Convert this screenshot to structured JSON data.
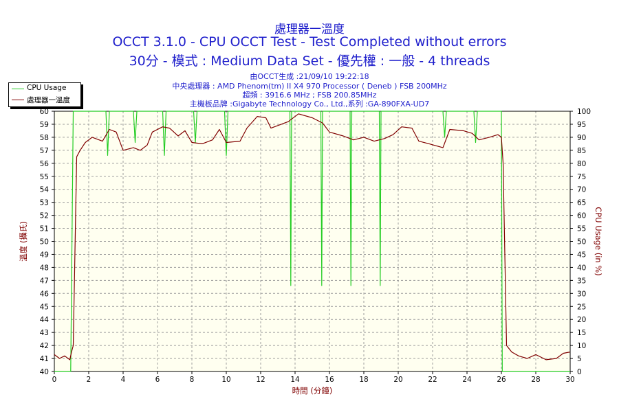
{
  "title_lines": [
    "處理器一溫度",
    "OCCT 3.1.0 - CPU OCCT Test - Test Completed without errors",
    "30分 - 模式 : Medium Data Set - 優先權 : 一般 - 4 threads"
  ],
  "info_lines": [
    "由OCCT生成 :21/09/10 19:22:18",
    "中央處理器 : AMD Phenom(tm) II X4 970 Processor ( Deneb ) FSB 200MHz",
    "超頻 : 3916.6 MHz ; FSB 200.85MHz",
    "主機板品牌 :Gigabyte Technology Co., Ltd.,系列 :GA-890FXA-UD7"
  ],
  "colors": {
    "title": "#1f1fcc",
    "temperature": "#800000",
    "cpu_usage": "#22cc22",
    "grid": "#9c9c9c",
    "plot_bg": "#fffff0"
  },
  "chart_data": {
    "type": "line",
    "xlabel": "時間 (分鐘)",
    "ylabel_left": "溫度 (攝氏)",
    "ylabel_right": "CPU Usage (in %)",
    "xlim": [
      0,
      30
    ],
    "ylim_left": [
      40,
      60
    ],
    "ylim_right": [
      0,
      100
    ],
    "x_ticks": [
      0,
      2,
      4,
      6,
      8,
      10,
      12,
      14,
      16,
      18,
      20,
      22,
      24,
      26,
      28,
      30
    ],
    "y_ticks_left": [
      40,
      41,
      42,
      43,
      44,
      45,
      46,
      47,
      48,
      49,
      50,
      51,
      52,
      53,
      54,
      55,
      56,
      57,
      58,
      59,
      60
    ],
    "y_ticks_right": [
      0,
      5,
      10,
      15,
      20,
      25,
      30,
      35,
      40,
      45,
      50,
      55,
      60,
      65,
      70,
      75,
      80,
      85,
      90,
      95,
      100
    ],
    "grid": true,
    "legend_position": "top-left",
    "series": [
      {
        "name": "CPU Usage",
        "axis": "right",
        "points": [
          [
            0,
            0
          ],
          [
            0.6,
            0
          ],
          [
            0.95,
            0
          ],
          [
            1.1,
            100
          ],
          [
            3.0,
            100
          ],
          [
            3.1,
            83
          ],
          [
            3.2,
            100
          ],
          [
            4.6,
            100
          ],
          [
            4.7,
            88
          ],
          [
            4.8,
            100
          ],
          [
            6.3,
            100
          ],
          [
            6.4,
            83
          ],
          [
            6.5,
            100
          ],
          [
            8.1,
            100
          ],
          [
            8.2,
            88
          ],
          [
            8.3,
            100
          ],
          [
            9.9,
            100
          ],
          [
            10.0,
            83
          ],
          [
            10.1,
            100
          ],
          [
            13.7,
            100
          ],
          [
            13.75,
            33
          ],
          [
            13.8,
            100
          ],
          [
            15.5,
            100
          ],
          [
            15.55,
            33
          ],
          [
            15.6,
            100
          ],
          [
            17.2,
            100
          ],
          [
            17.25,
            33
          ],
          [
            17.3,
            100
          ],
          [
            18.9,
            100
          ],
          [
            18.95,
            33
          ],
          [
            19.0,
            100
          ],
          [
            22.6,
            100
          ],
          [
            22.7,
            90
          ],
          [
            22.8,
            100
          ],
          [
            24.4,
            100
          ],
          [
            24.5,
            88
          ],
          [
            24.6,
            100
          ],
          [
            26.0,
            100
          ],
          [
            26.05,
            0
          ],
          [
            30,
            0
          ]
        ]
      },
      {
        "name": "處理器一溫度",
        "axis": "left",
        "points": [
          [
            0,
            41.3
          ],
          [
            0.3,
            41.0
          ],
          [
            0.6,
            41.2
          ],
          [
            0.9,
            40.9
          ],
          [
            1.0,
            41.5
          ],
          [
            1.1,
            42.0
          ],
          [
            1.3,
            56.5
          ],
          [
            1.5,
            57.0
          ],
          [
            1.8,
            57.6
          ],
          [
            2.2,
            58.0
          ],
          [
            2.8,
            57.7
          ],
          [
            3.2,
            58.6
          ],
          [
            3.6,
            58.4
          ],
          [
            4.0,
            57.0
          ],
          [
            4.6,
            57.2
          ],
          [
            5.0,
            57.0
          ],
          [
            5.4,
            57.4
          ],
          [
            5.7,
            58.4
          ],
          [
            6.3,
            58.8
          ],
          [
            6.7,
            58.7
          ],
          [
            7.2,
            58.1
          ],
          [
            7.6,
            58.5
          ],
          [
            8.0,
            57.6
          ],
          [
            8.6,
            57.5
          ],
          [
            9.2,
            57.8
          ],
          [
            9.6,
            58.6
          ],
          [
            10.0,
            57.6
          ],
          [
            10.8,
            57.7
          ],
          [
            11.2,
            58.7
          ],
          [
            11.8,
            59.6
          ],
          [
            12.3,
            59.5
          ],
          [
            12.6,
            58.7
          ],
          [
            13.0,
            58.9
          ],
          [
            13.6,
            59.2
          ],
          [
            14.2,
            59.8
          ],
          [
            15.0,
            59.5
          ],
          [
            15.6,
            59.1
          ],
          [
            16.0,
            58.4
          ],
          [
            16.8,
            58.1
          ],
          [
            17.4,
            57.8
          ],
          [
            18.0,
            58.0
          ],
          [
            18.6,
            57.7
          ],
          [
            19.2,
            57.9
          ],
          [
            19.7,
            58.2
          ],
          [
            20.2,
            58.8
          ],
          [
            20.8,
            58.7
          ],
          [
            21.2,
            57.7
          ],
          [
            21.8,
            57.5
          ],
          [
            22.6,
            57.2
          ],
          [
            23.0,
            58.6
          ],
          [
            23.8,
            58.5
          ],
          [
            24.3,
            58.3
          ],
          [
            24.7,
            57.8
          ],
          [
            25.3,
            58.0
          ],
          [
            25.8,
            58.2
          ],
          [
            26.0,
            58.0
          ],
          [
            26.1,
            56.0
          ],
          [
            26.3,
            42.0
          ],
          [
            26.6,
            41.5
          ],
          [
            27.0,
            41.2
          ],
          [
            27.5,
            41.0
          ],
          [
            28.0,
            41.3
          ],
          [
            28.6,
            40.9
          ],
          [
            29.2,
            41.0
          ],
          [
            29.6,
            41.4
          ],
          [
            30,
            41.5
          ]
        ]
      }
    ]
  }
}
